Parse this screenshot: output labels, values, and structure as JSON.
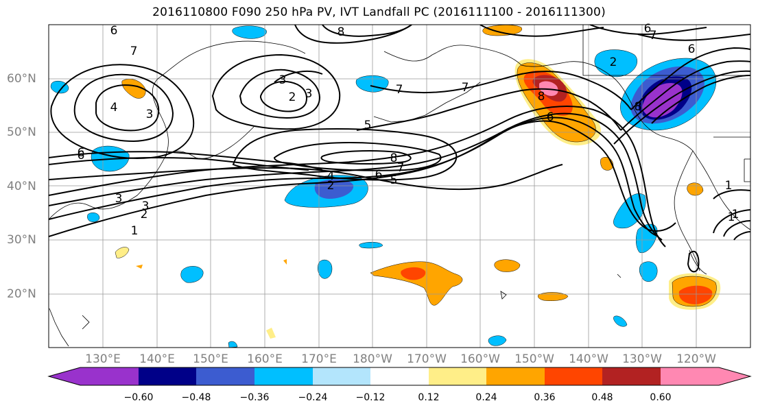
{
  "title": "2016110800 F090 250 hPa PV, IVT Landfall PC (2016111100 - 2016111300)",
  "map": {
    "region": "North Pacific",
    "lat_labels": [
      "60°N",
      "50°N",
      "40°N",
      "30°N",
      "20°N"
    ],
    "lon_labels": [
      "130°E",
      "140°E",
      "150°E",
      "160°E",
      "170°E",
      "180°W",
      "170°W",
      "160°W",
      "150°W",
      "140°W",
      "130°W",
      "120°W"
    ],
    "contour_color": "#000000",
    "contour_labels": [
      "6",
      "7",
      "6",
      "8",
      "3",
      "2",
      "3",
      "4",
      "3",
      "7",
      "7",
      "5",
      "8",
      "6",
      "5",
      "7",
      "6",
      "4",
      "2",
      "6",
      "3",
      "2",
      "3",
      "1",
      "1",
      "7",
      "6",
      "8",
      "2",
      "1",
      "1",
      "6",
      "8"
    ],
    "filled_field": {
      "positive_colors": [
        "#ffee88",
        "#ffa500",
        "#ff4500",
        "#b22222",
        "#ff88b2"
      ],
      "negative_colors": [
        "#b3e5fc",
        "#00bfff",
        "#3c5cd0",
        "#000088",
        "#9932cc"
      ]
    }
  },
  "colorbar": {
    "ticks": [
      "−0.60",
      "−0.48",
      "−0.36",
      "−0.24",
      "−0.12",
      "0.12",
      "0.24",
      "0.36",
      "0.48",
      "0.60"
    ],
    "bins": [
      "#9932cc",
      "#000088",
      "#3c5cd0",
      "#00bfff",
      "#b3e5fc",
      "#ffffff",
      "#ffee88",
      "#ffa500",
      "#ff4500",
      "#b22222",
      "#ff88b2"
    ]
  }
}
